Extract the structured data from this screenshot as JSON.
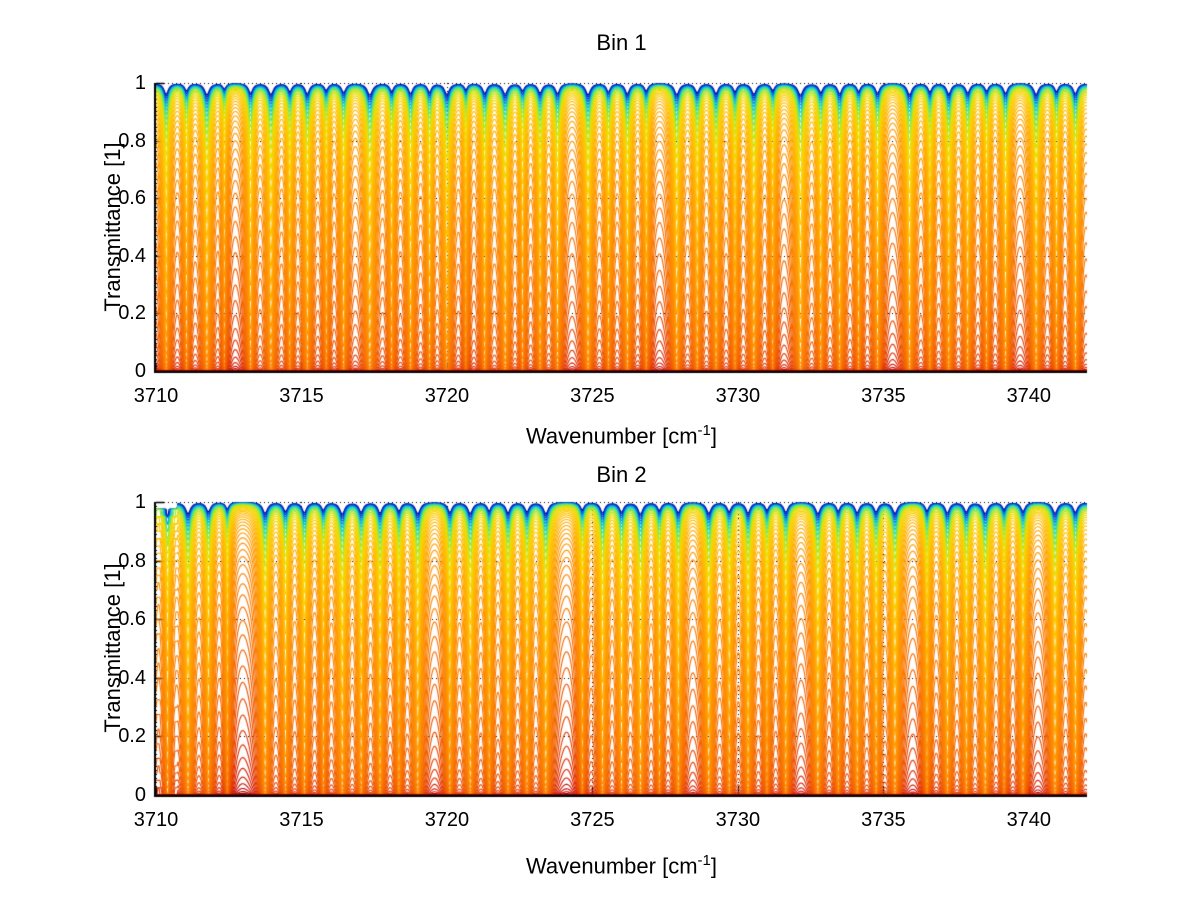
{
  "figure": {
    "background": "#ffffff",
    "text_color": "#000000",
    "axis_color": "#000000"
  },
  "colormap": {
    "name": "jet-like: highest-transmittance spectra blue/cyan, bulk orange, most-absorbed dark red",
    "stops": [
      [
        0.0,
        "#000099"
      ],
      [
        0.05,
        "#0044DD"
      ],
      [
        0.09,
        "#00AADD"
      ],
      [
        0.13,
        "#33DDAA"
      ],
      [
        0.18,
        "#99E833"
      ],
      [
        0.24,
        "#EEDD00"
      ],
      [
        0.33,
        "#FFC400"
      ],
      [
        0.46,
        "#FF9D00"
      ],
      [
        0.6,
        "#FB7B00"
      ],
      [
        0.72,
        "#EE5500"
      ],
      [
        0.82,
        "#DD2200"
      ],
      [
        0.9,
        "#BB0000"
      ],
      [
        1.0,
        "#770000"
      ]
    ]
  },
  "chart_data": [
    {
      "type": "line",
      "title": "Bin 1",
      "xlabel_parts": [
        "Wavenumber [cm",
        "-1",
        "]"
      ],
      "ylabel": "Transmittance [1]",
      "xlim": [
        3710,
        3742
      ],
      "ylim": [
        0,
        1
      ],
      "xticks": [
        3710,
        3715,
        3720,
        3725,
        3730,
        3735,
        3740
      ],
      "xtick_labels": [
        "3710",
        "3715",
        "3720",
        "3725",
        "3730",
        "3735",
        "3740"
      ],
      "yticks": [
        0,
        0.2,
        0.4,
        0.6,
        0.8,
        1
      ],
      "ytick_labels": [
        "0",
        "0.2",
        "0.4",
        "0.6",
        "0.8",
        "1"
      ],
      "grid": true,
      "grid_style": "dotted",
      "series_model": {
        "description": "Family of transmittance spectra T_i(nu)=exp(-s_i*k(nu)); k = continuum + sum of Lorentzian absorption lines [center cm-1, strength, halfwidth cm-1]; s_i log-spaced scale_min..scale_max; color by spectrum index via colormap stops",
        "n_spectra": 56,
        "scale_min": 0.012,
        "scale_max": 55,
        "continuum": 0.03,
        "edge_step_artifact_below": null,
        "absorption_lines": [
          [
            3709.6,
            2.8,
            0.1
          ],
          [
            3710.35,
            3.2,
            0.09
          ],
          [
            3711.05,
            2.2,
            0.08
          ],
          [
            3711.75,
            3.4,
            0.1
          ],
          [
            3712.35,
            1.6,
            0.07
          ],
          [
            3713.25,
            2.9,
            0.09
          ],
          [
            3713.95,
            3.3,
            0.1
          ],
          [
            3714.6,
            2.4,
            0.08
          ],
          [
            3715.2,
            3.1,
            0.09
          ],
          [
            3715.85,
            2.0,
            0.08
          ],
          [
            3716.45,
            2.7,
            0.09
          ],
          [
            3717.35,
            3.5,
            0.11
          ],
          [
            3718.1,
            2.3,
            0.08
          ],
          [
            3718.75,
            3.0,
            0.09
          ],
          [
            3719.4,
            2.6,
            0.08
          ],
          [
            3720.0,
            3.3,
            0.1
          ],
          [
            3720.65,
            1.8,
            0.07
          ],
          [
            3721.3,
            2.9,
            0.09
          ],
          [
            3722.0,
            3.2,
            0.1
          ],
          [
            3722.6,
            2.1,
            0.08
          ],
          [
            3723.2,
            2.8,
            0.09
          ],
          [
            3723.8,
            3.0,
            0.09
          ],
          [
            3724.85,
            3.4,
            0.1
          ],
          [
            3725.55,
            2.5,
            0.08
          ],
          [
            3726.2,
            3.1,
            0.09
          ],
          [
            3726.85,
            2.2,
            0.08
          ],
          [
            3727.9,
            3.3,
            0.1
          ],
          [
            3728.6,
            2.7,
            0.09
          ],
          [
            3729.25,
            3.0,
            0.09
          ],
          [
            3729.9,
            2.4,
            0.08
          ],
          [
            3730.55,
            3.2,
            0.1
          ],
          [
            3731.2,
            2.0,
            0.08
          ],
          [
            3732.15,
            3.5,
            0.11
          ],
          [
            3732.85,
            2.6,
            0.09
          ],
          [
            3733.5,
            3.1,
            0.09
          ],
          [
            3734.15,
            2.3,
            0.08
          ],
          [
            3734.8,
            2.9,
            0.09
          ],
          [
            3735.9,
            3.4,
            0.1
          ],
          [
            3736.6,
            2.5,
            0.08
          ],
          [
            3737.25,
            3.2,
            0.09
          ],
          [
            3737.9,
            2.8,
            0.09
          ],
          [
            3738.55,
            2.2,
            0.08
          ],
          [
            3739.2,
            3.0,
            0.09
          ],
          [
            3740.25,
            3.3,
            0.1
          ],
          [
            3740.95,
            2.4,
            0.08
          ],
          [
            3741.6,
            3.1,
            0.09
          ],
          [
            3742.3,
            2.7,
            0.09
          ]
        ]
      }
    },
    {
      "type": "line",
      "title": "Bin 2",
      "xlabel_parts": [
        "Wavenumber [cm",
        "-1",
        "]"
      ],
      "ylabel": "Transmittance [1]",
      "xlim": [
        3710,
        3742
      ],
      "ylim": [
        0,
        1
      ],
      "xticks": [
        3710,
        3715,
        3720,
        3725,
        3730,
        3735,
        3740
      ],
      "xtick_labels": [
        "3710",
        "3715",
        "3720",
        "3725",
        "3730",
        "3735",
        "3740"
      ],
      "yticks": [
        0,
        0.2,
        0.4,
        0.6,
        0.8,
        1
      ],
      "ytick_labels": [
        "0",
        "0.2",
        "0.4",
        "0.6",
        "0.8",
        "1"
      ],
      "grid": true,
      "grid_style": "dotted",
      "series_model": {
        "description": "Same model as Bin 1 with its own line list; spectra quantized in steps near the left edge (plotting artifact seen in source image)",
        "n_spectra": 56,
        "scale_min": 0.012,
        "scale_max": 55,
        "continuum": 0.03,
        "edge_step_artifact_below": 3710.75,
        "absorption_lines": [
          [
            3709.7,
            3.0,
            0.1
          ],
          [
            3710.4,
            2.3,
            0.08
          ],
          [
            3711.1,
            3.3,
            0.1
          ],
          [
            3711.8,
            2.7,
            0.09
          ],
          [
            3712.45,
            1.9,
            0.07
          ],
          [
            3713.75,
            3.2,
            0.1
          ],
          [
            3714.45,
            2.6,
            0.09
          ],
          [
            3715.1,
            3.0,
            0.09
          ],
          [
            3715.75,
            2.2,
            0.08
          ],
          [
            3716.4,
            3.4,
            0.1
          ],
          [
            3717.05,
            2.8,
            0.09
          ],
          [
            3717.7,
            3.1,
            0.09
          ],
          [
            3718.35,
            2.5,
            0.08
          ],
          [
            3719.0,
            3.3,
            0.1
          ],
          [
            3720.1,
            2.9,
            0.09
          ],
          [
            3720.8,
            3.2,
            0.1
          ],
          [
            3721.45,
            2.4,
            0.08
          ],
          [
            3722.1,
            3.0,
            0.09
          ],
          [
            3722.75,
            2.7,
            0.09
          ],
          [
            3723.4,
            3.3,
            0.1
          ],
          [
            3724.65,
            2.1,
            0.08
          ],
          [
            3725.35,
            3.1,
            0.09
          ],
          [
            3726.0,
            2.8,
            0.09
          ],
          [
            3726.65,
            3.4,
            0.1
          ],
          [
            3727.3,
            2.3,
            0.08
          ],
          [
            3727.95,
            3.0,
            0.09
          ],
          [
            3729.0,
            3.2,
            0.1
          ],
          [
            3729.7,
            2.6,
            0.09
          ],
          [
            3730.35,
            3.1,
            0.09
          ],
          [
            3731.0,
            2.2,
            0.08
          ],
          [
            3731.65,
            2.9,
            0.09
          ],
          [
            3732.75,
            3.3,
            0.1
          ],
          [
            3733.45,
            2.5,
            0.08
          ],
          [
            3734.1,
            3.0,
            0.09
          ],
          [
            3734.75,
            2.7,
            0.09
          ],
          [
            3735.4,
            3.2,
            0.1
          ],
          [
            3736.5,
            2.4,
            0.08
          ],
          [
            3737.2,
            3.1,
            0.09
          ],
          [
            3737.85,
            2.8,
            0.09
          ],
          [
            3738.5,
            3.3,
            0.1
          ],
          [
            3739.15,
            2.0,
            0.08
          ],
          [
            3739.8,
            2.6,
            0.09
          ],
          [
            3740.9,
            3.2,
            0.1
          ],
          [
            3741.6,
            2.9,
            0.09
          ],
          [
            3742.3,
            3.1,
            0.09
          ]
        ]
      }
    }
  ]
}
